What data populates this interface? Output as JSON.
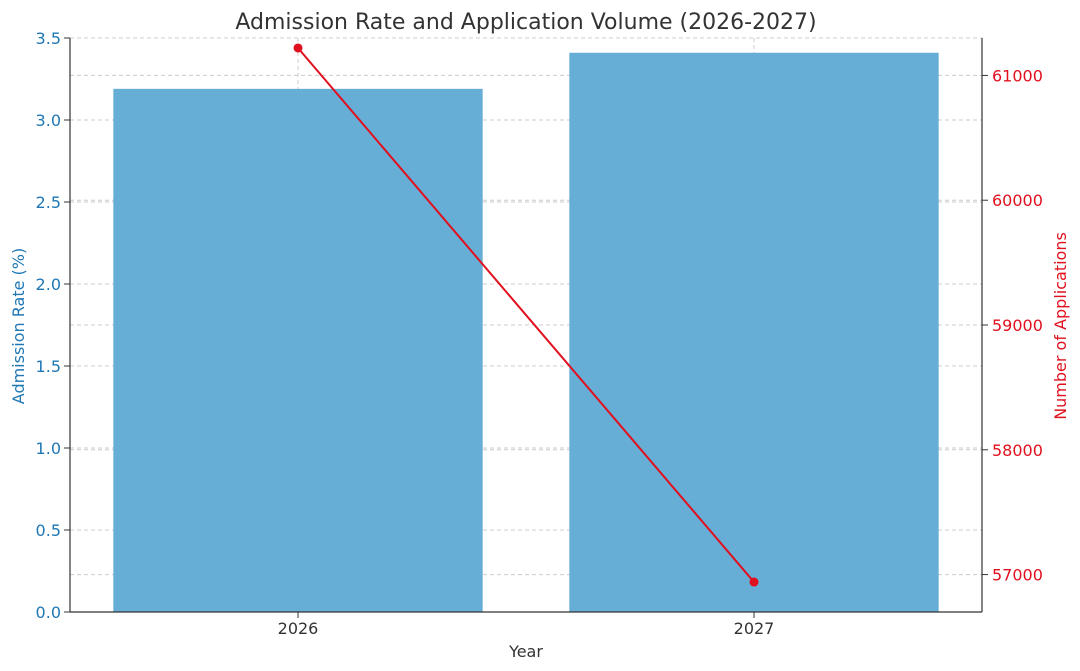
{
  "chart_data": {
    "type": "bar",
    "title": "Admission Rate and Application Volume (2026-2027)",
    "xlabel": "Year",
    "categories": [
      "2026",
      "2027"
    ],
    "series": [
      {
        "chart_type": "bar",
        "axis": "left",
        "values": [
          3.19,
          3.41
        ],
        "color": "#67aed6"
      },
      {
        "chart_type": "line",
        "axis": "right",
        "values": [
          61220,
          56940
        ],
        "color": "#e0101e"
      }
    ],
    "y_left": {
      "label": "Admission Rate (%)",
      "range": [
        0,
        3.5
      ],
      "ticks": [
        "0.0",
        "0.5",
        "1.0",
        "1.5",
        "2.0",
        "2.5",
        "3.0",
        "3.5"
      ],
      "color": "#1f77b4"
    },
    "y_right": {
      "label": "Number of Applications",
      "range": [
        56700,
        61300
      ],
      "ticks": [
        "57000",
        "58000",
        "59000",
        "60000",
        "61000"
      ],
      "color": "#e0101e"
    },
    "grid": true
  }
}
